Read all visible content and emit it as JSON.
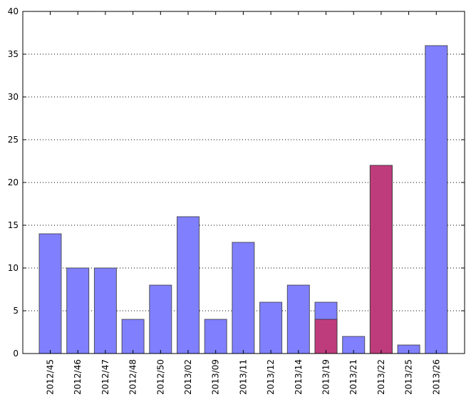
{
  "chart_data": {
    "type": "bar",
    "title": "",
    "xlabel": "",
    "ylabel": "",
    "categories": [
      "2012/45",
      "2012/46",
      "2012/47",
      "2012/48",
      "2012/50",
      "2013/02",
      "2013/09",
      "2013/11",
      "2013/12",
      "2013/14",
      "2013/19",
      "2013/21",
      "2013/22",
      "2013/25",
      "2013/26"
    ],
    "series": [
      {
        "color": "#8080ff",
        "values": [
          14,
          10,
          10,
          4,
          8,
          16,
          4,
          13,
          6,
          8,
          6,
          2,
          22,
          1,
          36
        ]
      },
      {
        "color": "#bf3c7c",
        "values": [
          0,
          0,
          0,
          0,
          0,
          0,
          0,
          0,
          0,
          0,
          4,
          0,
          22,
          0,
          0
        ]
      }
    ],
    "ylim": [
      0,
      40
    ],
    "yticks": [
      0,
      5,
      10,
      15,
      20,
      25,
      30,
      35,
      40
    ],
    "grid": "horizontal dotted",
    "legend": "none"
  }
}
